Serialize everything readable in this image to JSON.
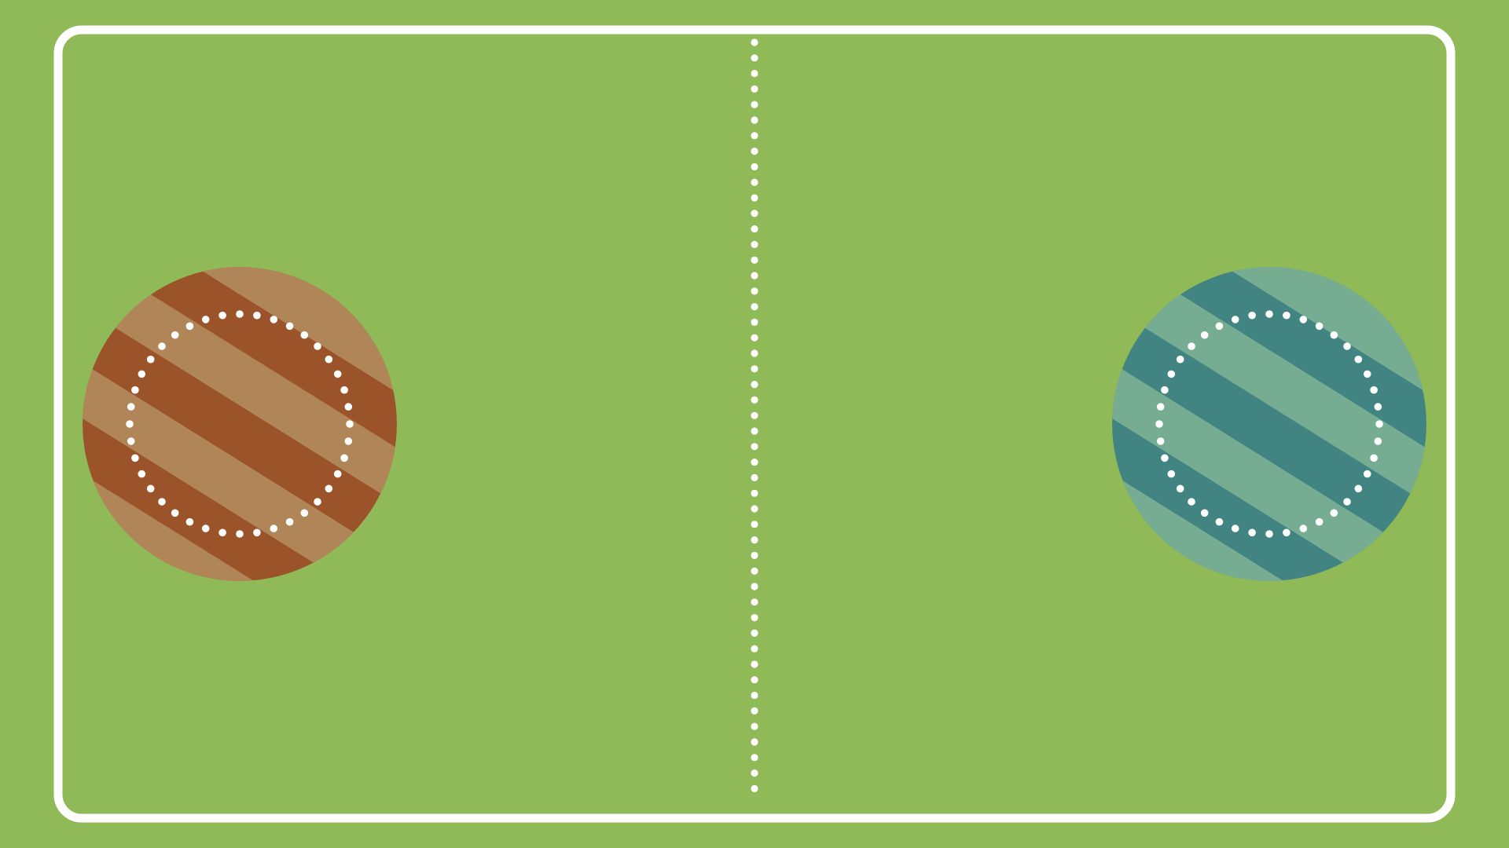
{
  "field": {
    "background_color": "#90b958",
    "line_color": "#ffffff",
    "boundary": "rounded-rectangle",
    "center_line": "dotted-vertical"
  },
  "teams": [
    {
      "id": "left",
      "pattern": "diagonal-stripes",
      "stripe_colors": [
        "#9b5429",
        "#b08659"
      ],
      "ring": "dotted-circle"
    },
    {
      "id": "right",
      "pattern": "diagonal-stripes",
      "stripe_colors": [
        "#418482",
        "#76ac92"
      ],
      "ring": "dotted-circle"
    }
  ]
}
